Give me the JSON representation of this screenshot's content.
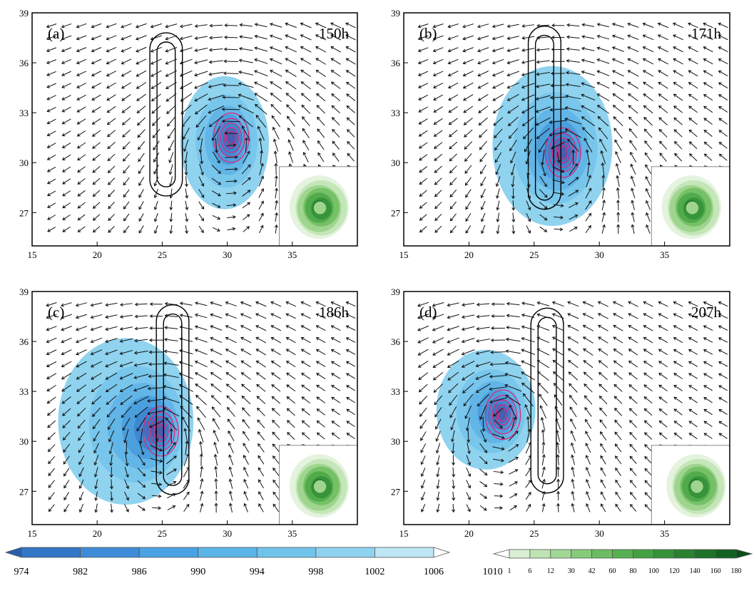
{
  "chart_data": [
    {
      "type": "vector-contour-map",
      "panel_label": "(a)",
      "time_label": "150h",
      "xlim": [
        15,
        40
      ],
      "ylim": [
        25,
        39
      ],
      "xticks": [
        "15",
        "20",
        "25",
        "30",
        "35"
      ],
      "yticks": [
        "27",
        "30",
        "33",
        "36",
        "39"
      ],
      "vortex_center": [
        30.3,
        31.5
      ],
      "shaded_extent": [
        29.8,
        31.2,
        3.4,
        4.0
      ],
      "racetrack": {
        "x_center": 25.3,
        "y_bottom": 28.0,
        "y_top": 37.8
      },
      "inset": true
    },
    {
      "type": "vector-contour-map",
      "panel_label": "(b)",
      "time_label": "171h",
      "xlim": [
        15,
        40
      ],
      "ylim": [
        25,
        39
      ],
      "xticks": [
        "15",
        "20",
        "25",
        "30",
        "35"
      ],
      "yticks": [
        "27",
        "30",
        "33",
        "36",
        "39"
      ],
      "vortex_center": [
        27.2,
        30.6
      ],
      "shaded_extent": [
        26.4,
        31.0,
        4.6,
        4.8
      ],
      "racetrack": {
        "x_center": 25.8,
        "y_bottom": 27.2,
        "y_top": 38.2
      },
      "inset": true
    },
    {
      "type": "vector-contour-map",
      "panel_label": "(c)",
      "time_label": "186h",
      "xlim": [
        15,
        40
      ],
      "ylim": [
        25,
        39
      ],
      "xticks": [
        "15",
        "20",
        "25",
        "30",
        "35"
      ],
      "yticks": [
        "27",
        "30",
        "33",
        "36",
        "39"
      ],
      "vortex_center": [
        24.9,
        30.6
      ],
      "shaded_extent": [
        22.2,
        31.2,
        5.2,
        5.0
      ],
      "racetrack": {
        "x_center": 25.8,
        "y_bottom": 26.8,
        "y_top": 38.2
      },
      "inset": true
    },
    {
      "type": "vector-contour-map",
      "panel_label": "(d)",
      "time_label": "207h",
      "xlim": [
        15,
        40
      ],
      "ylim": [
        25,
        39
      ],
      "xticks": [
        "15",
        "20",
        "25",
        "30",
        "35"
      ],
      "yticks": [
        "27",
        "30",
        "33",
        "36",
        "39"
      ],
      "vortex_center": [
        22.6,
        31.6
      ],
      "shaded_extent": [
        21.3,
        31.9,
        3.8,
        3.6
      ],
      "racetrack": {
        "x_center": 26.0,
        "y_bottom": 26.9,
        "y_top": 38.0
      },
      "inset": true
    }
  ],
  "colorbars": [
    {
      "name": "pressure",
      "labels": [
        "974",
        "982",
        "986",
        "990",
        "994",
        "998",
        "1002",
        "1006",
        "1010"
      ],
      "colors": [
        "#2a5fb0",
        "#3476c6",
        "#3f8cd8",
        "#4ba2e2",
        "#5bb4e8",
        "#70c4ec",
        "#8fd2ef",
        "#bfe6f5",
        "#ffffff"
      ]
    },
    {
      "name": "rain",
      "labels": [
        "1",
        "6",
        "12",
        "30",
        "42",
        "60",
        "80",
        "100",
        "120",
        "140",
        "160",
        "180"
      ],
      "colors": [
        "#ffffff",
        "#d8efd2",
        "#bfe4b4",
        "#a2d896",
        "#86cb7a",
        "#6cbd62",
        "#56b050",
        "#43a142",
        "#349237",
        "#28822f",
        "#1e7228",
        "#146021",
        "#0b4f1a"
      ]
    }
  ],
  "colors": {
    "contour_pink": "#e0287a",
    "arrow": "#111111",
    "frame": "#000000"
  }
}
